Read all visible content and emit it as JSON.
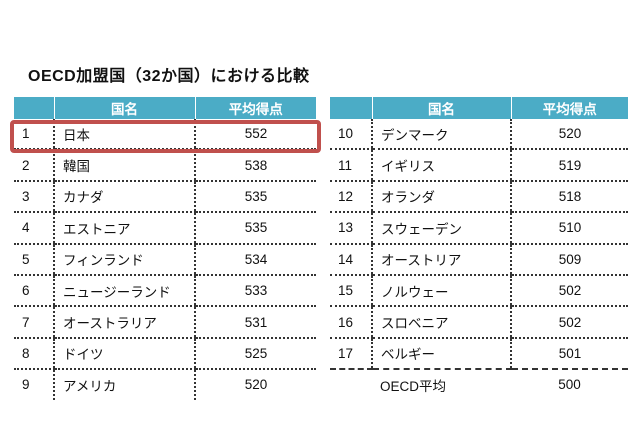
{
  "title": "OECD加盟国（32か国）における比較",
  "headers": {
    "rank": "",
    "country": "国名",
    "score": "平均得点"
  },
  "highlight_color": "#c0504d",
  "header_color": "#4bacc6",
  "left_rows": [
    {
      "rank": "1",
      "country": "日本",
      "score": "552"
    },
    {
      "rank": "2",
      "country": "韓国",
      "score": "538"
    },
    {
      "rank": "3",
      "country": "カナダ",
      "score": "535"
    },
    {
      "rank": "4",
      "country": "エストニア",
      "score": "535"
    },
    {
      "rank": "5",
      "country": "フィンランド",
      "score": "534"
    },
    {
      "rank": "6",
      "country": "ニュージーランド",
      "score": "533"
    },
    {
      "rank": "7",
      "country": "オーストラリア",
      "score": "531"
    },
    {
      "rank": "8",
      "country": "ドイツ",
      "score": "525"
    },
    {
      "rank": "9",
      "country": "アメリカ",
      "score": "520"
    }
  ],
  "right_rows": [
    {
      "rank": "10",
      "country": "デンマーク",
      "score": "520"
    },
    {
      "rank": "11",
      "country": "イギリス",
      "score": "519"
    },
    {
      "rank": "12",
      "country": "オランダ",
      "score": "518"
    },
    {
      "rank": "13",
      "country": "スウェーデン",
      "score": "510"
    },
    {
      "rank": "14",
      "country": "オーストリア",
      "score": "509"
    },
    {
      "rank": "15",
      "country": "ノルウェー",
      "score": "502"
    },
    {
      "rank": "16",
      "country": "スロベニア",
      "score": "502"
    },
    {
      "rank": "17",
      "country": "ベルギー",
      "score": "501"
    },
    {
      "rank": "",
      "country": "OECD平均",
      "score": "500"
    }
  ]
}
